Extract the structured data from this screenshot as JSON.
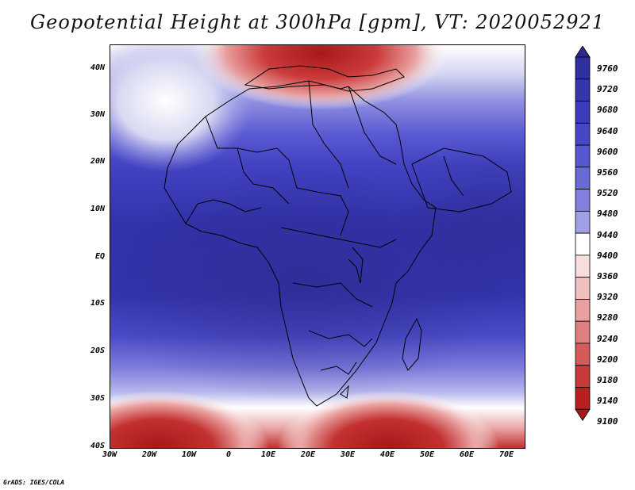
{
  "title": "Geopotential Height at 300hPa [gpm], VT: 2020052921",
  "footer": "GrADS: IGES/COLA",
  "map": {
    "lat_labels": [
      "40N",
      "30N",
      "20N",
      "10N",
      "EQ",
      "10S",
      "20S",
      "30S",
      "40S"
    ],
    "lon_labels": [
      "30W",
      "20W",
      "10W",
      "0",
      "10E",
      "20E",
      "30E",
      "40E",
      "50E",
      "60E",
      "70E"
    ],
    "lat_range": [
      -40,
      44
    ],
    "lon_range": [
      -30,
      75
    ],
    "features": [
      "Africa",
      "Arabian Peninsula",
      "Mediterranean",
      "Madagascar"
    ]
  },
  "colorbar": {
    "levels": [
      9760,
      9720,
      9680,
      9640,
      9600,
      9560,
      9520,
      9480,
      9440,
      9400,
      9360,
      9320,
      9280,
      9240,
      9200,
      9180,
      9140,
      9100
    ],
    "labels": [
      "9760",
      "9720",
      "9680",
      "9640",
      "9600",
      "9560",
      "9520",
      "9480",
      "9440",
      "9400",
      "9360",
      "9320",
      "9280",
      "9240",
      "9200",
      "9180",
      "9140",
      "9100"
    ],
    "colors": [
      "#2a2a8c",
      "#2f2fa0",
      "#3535ad",
      "#3b3bbb",
      "#4747c6",
      "#5757cf",
      "#6a6ad6",
      "#8282de",
      "#a0a0e6",
      "#ffffff",
      "#f6dede",
      "#f0c0c0",
      "#e8a0a0",
      "#e07f7f",
      "#d55a5a",
      "#c83a3a",
      "#b82020",
      "#a81818"
    ]
  }
}
